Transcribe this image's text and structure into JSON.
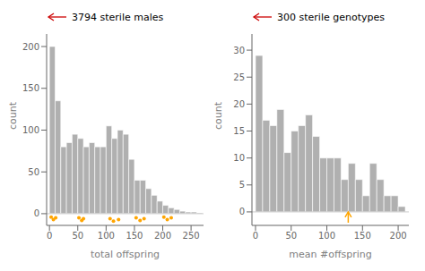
{
  "chart_data": [
    {
      "type": "histogram",
      "annotation": {
        "text": "3794 sterile males",
        "arrow_color": "#cc0000"
      },
      "xlabel": "total offspring",
      "ylabel": "count",
      "color": "#b0b0b0",
      "bins": [
        0,
        10,
        20,
        30,
        40,
        50,
        60,
        70,
        80,
        90,
        100,
        110,
        120,
        130,
        140,
        150,
        160,
        170,
        180,
        190,
        200,
        210,
        220,
        230,
        240,
        250,
        260,
        270
      ],
      "values": [
        200,
        135,
        80,
        85,
        95,
        90,
        80,
        85,
        80,
        80,
        105,
        90,
        100,
        95,
        65,
        40,
        40,
        30,
        22,
        15,
        10,
        7,
        5,
        3,
        2,
        2,
        1
      ],
      "xlim": [
        -5,
        272
      ],
      "ylim": [
        -14,
        215
      ],
      "xticks": [
        0,
        50,
        100,
        150,
        200,
        250
      ],
      "yticks": [
        0,
        50,
        100,
        150,
        200
      ],
      "points": {
        "x": [
          3,
          7,
          11,
          52,
          57,
          60,
          107,
          113,
          122,
          153,
          160,
          167,
          202,
          208,
          215
        ],
        "y": [
          -4,
          -7,
          -5,
          -5,
          -8,
          -6,
          -6,
          -9,
          -7,
          -5,
          -8,
          -6,
          -4,
          -7,
          -5
        ],
        "color": "#FFA500"
      }
    },
    {
      "type": "histogram",
      "annotation": {
        "text": "300 sterile genotypes",
        "arrow_color": "#cc0000"
      },
      "xlabel": "mean #offspring",
      "ylabel": "count",
      "color": "#b0b0b0",
      "bins": [
        0,
        10,
        20,
        30,
        40,
        50,
        60,
        70,
        80,
        90,
        100,
        110,
        120,
        130,
        140,
        150,
        160,
        170,
        180,
        190,
        200,
        210
      ],
      "values": [
        29,
        17,
        16,
        19,
        11,
        15,
        16,
        18,
        14,
        10,
        10,
        10,
        6,
        9,
        6,
        3,
        9,
        6,
        3,
        3,
        1
      ],
      "xlim": [
        -5,
        215
      ],
      "ylim": [
        -2.5,
        33
      ],
      "xticks": [
        0,
        50,
        100,
        150,
        200
      ],
      "yticks": [
        0,
        5,
        10,
        15,
        20,
        25,
        30
      ],
      "arrow": {
        "x": 130,
        "y_from": -2.0,
        "y_to": 0.0,
        "color": "#FFA500"
      }
    }
  ]
}
